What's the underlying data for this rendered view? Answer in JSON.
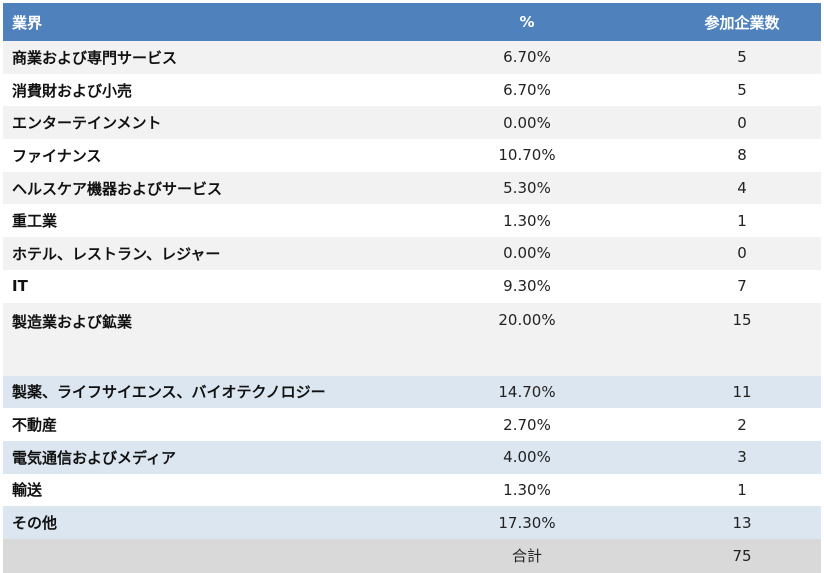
{
  "table": {
    "headers": {
      "industry": "業界",
      "percent": "%",
      "companies": "参加企業数"
    },
    "rows": [
      {
        "industry": "商業および専門サービス",
        "percent": "6.70%",
        "companies": "5"
      },
      {
        "industry": "消費財および小売",
        "percent": "6.70%",
        "companies": "5"
      },
      {
        "industry": "エンターテインメント",
        "percent": "0.00%",
        "companies": "0"
      },
      {
        "industry": "ファイナンス",
        "percent": "10.70%",
        "companies": "8"
      },
      {
        "industry": "ヘルスケア機器およびサービス",
        "percent": "5.30%",
        "companies": "4"
      },
      {
        "industry": "重工業",
        "percent": "1.30%",
        "companies": "1"
      },
      {
        "industry": "ホテル、レストラン、レジャー",
        "percent": "0.00%",
        "companies": "0"
      },
      {
        "industry": "IT",
        "percent": "9.30%",
        "companies": "7"
      },
      {
        "industry": "製造業および鉱業",
        "percent": "20.00%",
        "companies": "15"
      },
      {
        "industry": "製薬、ライフサイエンス、バイオテクノロジー",
        "percent": "14.70%",
        "companies": "11"
      },
      {
        "industry": "不動産",
        "percent": "2.70%",
        "companies": "2"
      },
      {
        "industry": "電気通信およびメディア",
        "percent": "4.00%",
        "companies": "3"
      },
      {
        "industry": "輸送",
        "percent": "1.30%",
        "companies": "1"
      },
      {
        "industry": "その他",
        "percent": "17.30%",
        "companies": "13"
      }
    ],
    "total": {
      "label": "合計",
      "companies": "75"
    }
  }
}
